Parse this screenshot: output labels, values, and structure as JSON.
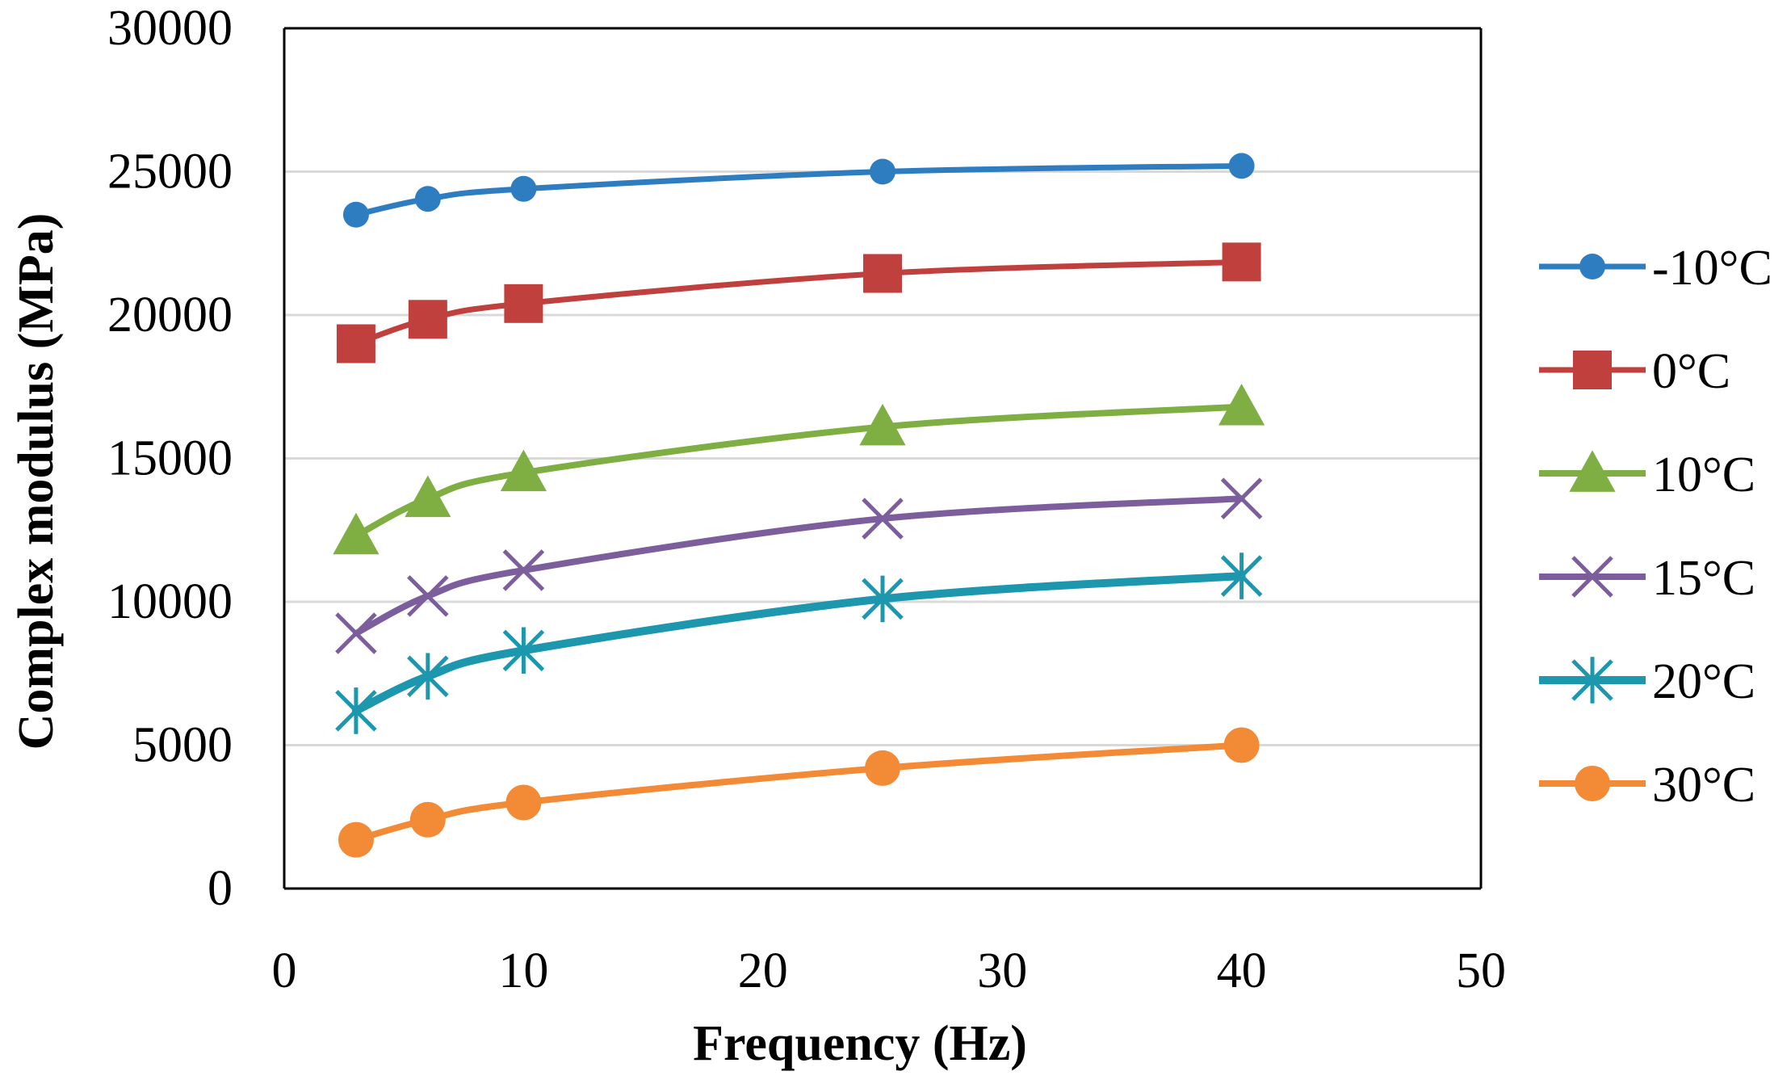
{
  "chart_data": {
    "type": "line",
    "title": "",
    "xlabel": "Frequency (Hz)",
    "ylabel": "Complex modulus (MPa)",
    "xlim": [
      0,
      50
    ],
    "ylim": [
      0,
      30000
    ],
    "x_ticks": [
      "0",
      "10",
      "20",
      "30",
      "40",
      "50"
    ],
    "y_ticks": [
      "0",
      "5000",
      "10000",
      "15000",
      "20000",
      "25000",
      "30000"
    ],
    "grid": "horizontal",
    "legend_position": "right",
    "smooth_lines": true,
    "series": [
      {
        "name": "-10°C",
        "color": "#2E7DC1",
        "marker": "circle",
        "x": [
          3,
          6,
          10,
          25,
          40
        ],
        "y": [
          23500,
          24050,
          24400,
          25000,
          25200
        ]
      },
      {
        "name": "0°C",
        "color": "#C0403D",
        "marker": "square",
        "x": [
          3,
          6,
          10,
          25,
          40
        ],
        "y": [
          19000,
          19850,
          20400,
          21450,
          21850
        ]
      },
      {
        "name": "10°C",
        "color": "#7FAE42",
        "marker": "triangle",
        "x": [
          3,
          6,
          10,
          25,
          40
        ],
        "y": [
          12300,
          13600,
          14500,
          16100,
          16800
        ]
      },
      {
        "name": "15°C",
        "color": "#7D5E9C",
        "marker": "x",
        "x": [
          3,
          6,
          10,
          25,
          40
        ],
        "y": [
          8900,
          10200,
          11100,
          12900,
          13600
        ]
      },
      {
        "name": "20°C",
        "color": "#1C97AE",
        "marker": "star",
        "x": [
          3,
          6,
          10,
          25,
          40
        ],
        "y": [
          6200,
          7400,
          8300,
          10100,
          10900
        ]
      },
      {
        "name": "30°C",
        "color": "#F38A36",
        "marker": "circle",
        "x": [
          3,
          6,
          10,
          25,
          40
        ],
        "y": [
          1700,
          2400,
          3000,
          4200,
          5000
        ]
      }
    ]
  }
}
